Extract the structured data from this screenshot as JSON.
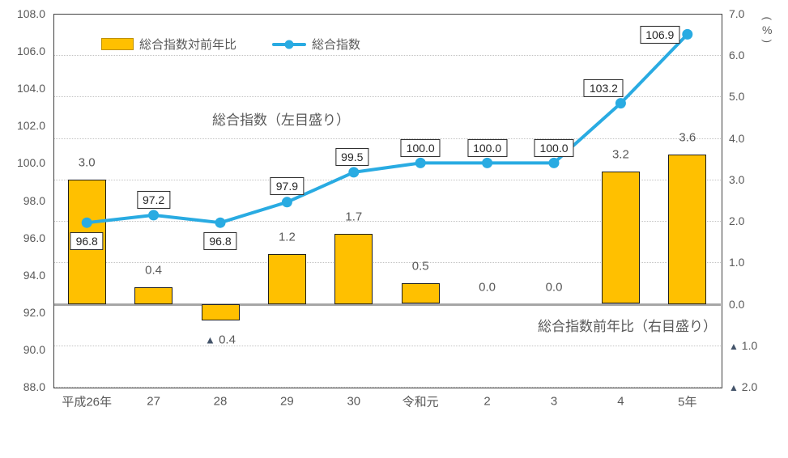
{
  "chart_data": {
    "type": "bar",
    "subtype": "combo-bar-line-dual-axis",
    "categories": [
      "平成26年",
      "27",
      "28",
      "29",
      "30",
      "令和元",
      "2",
      "3",
      "4",
      "5年"
    ],
    "series": [
      {
        "name": "総合指数対前年比",
        "type": "bar",
        "axis": "right",
        "color": "#ffc000",
        "values": [
          3.0,
          0.4,
          -0.4,
          1.2,
          1.7,
          0.5,
          0.0,
          0.0,
          3.2,
          3.6
        ],
        "labels": [
          "3.0",
          "0.4",
          "▲ 0.4",
          "1.2",
          "1.7",
          "0.5",
          "0.0",
          "0.0",
          "3.2",
          "3.6"
        ]
      },
      {
        "name": "総合指数",
        "type": "line",
        "axis": "left",
        "color": "#29abe2",
        "values": [
          96.8,
          97.2,
          96.8,
          97.9,
          99.5,
          100.0,
          100.0,
          100.0,
          103.2,
          106.9
        ],
        "labels": [
          "96.8",
          "97.2",
          "96.8",
          "97.9",
          "99.5",
          "100.0",
          "100.0",
          "100.0",
          "103.2",
          "106.9"
        ]
      }
    ],
    "left_axis": {
      "min": 88,
      "max": 108,
      "step": 2,
      "tick_labels": [
        "108.0",
        "106.0",
        "104.0",
        "102.0",
        "100.0",
        "98.0",
        "96.0",
        "94.0",
        "92.0",
        "90.0",
        "88.0"
      ]
    },
    "right_axis": {
      "min": -2,
      "max": 7,
      "step": 1,
      "unit": "（%）",
      "tick_labels": [
        "7.0",
        "6.0",
        "5.0",
        "4.0",
        "3.0",
        "2.0",
        "1.0",
        "0.0",
        "▲ 1.0",
        "▲ 2.0"
      ]
    },
    "annotations": [
      {
        "text": "総合指数（左目盛り）"
      },
      {
        "text": "総合指数前年比（右目盛り）"
      }
    ],
    "grid": "horizontal-dotted",
    "legend_position": "top"
  }
}
